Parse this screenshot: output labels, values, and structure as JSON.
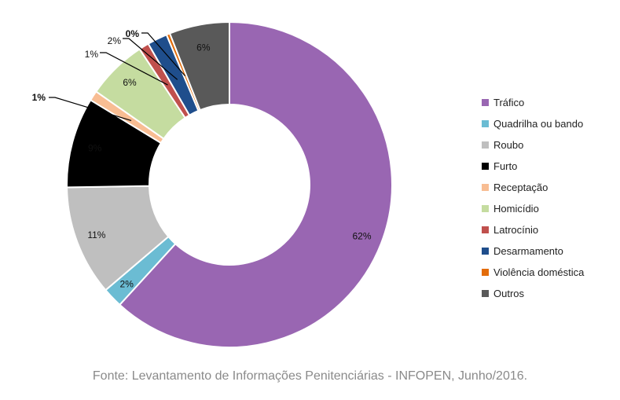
{
  "chart_data": {
    "type": "pie",
    "variant": "donut",
    "legend_position": "right",
    "series": [
      {
        "name": "Tráfico",
        "percent": 62,
        "label": "62%",
        "color": "#9966b2"
      },
      {
        "name": "Quadrilha ou bando",
        "percent": 2,
        "label": "2%",
        "color": "#6bbcd3"
      },
      {
        "name": "Roubo",
        "percent": 11,
        "label": "11%",
        "color": "#bfbfbf"
      },
      {
        "name": "Furto",
        "percent": 9,
        "label": "9%",
        "color": "#000000"
      },
      {
        "name": "Receptação",
        "percent": 1,
        "label": "1%",
        "color": "#f8bd93"
      },
      {
        "name": "Homicídio",
        "percent": 6,
        "label": "6%",
        "color": "#c5dca0"
      },
      {
        "name": "Latrocínio",
        "percent": 1,
        "label": "1%",
        "color": "#c0504d"
      },
      {
        "name": "Desarmamento",
        "percent": 2,
        "label": "2%",
        "color": "#1f4e8c"
      },
      {
        "name": "Violência doméstica",
        "percent": 0,
        "label": "0%",
        "color": "#e36c0a"
      },
      {
        "name": "Outros",
        "percent": 6,
        "label": "6%",
        "color": "#595959"
      }
    ]
  },
  "source": "Fonte: Levantamento de Informações Penitenciárias - INFOPEN, Junho/2016."
}
